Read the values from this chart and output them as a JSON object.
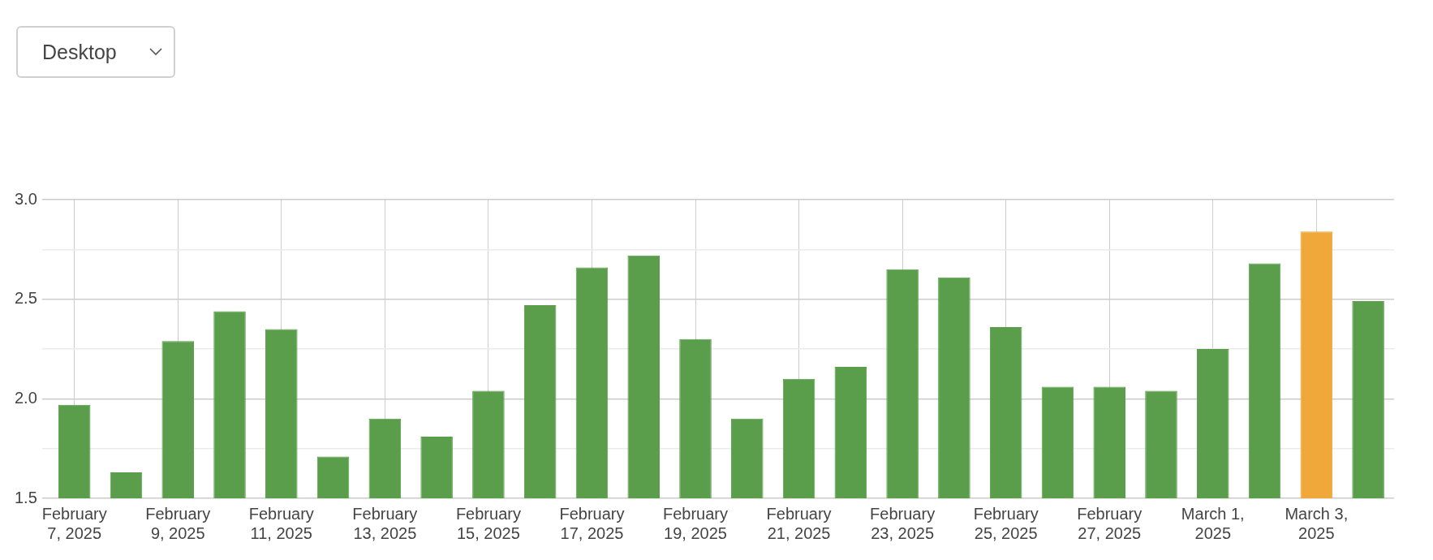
{
  "chart_data": {
    "type": "bar",
    "categories": [
      "February 7, 2025",
      null,
      "February 9, 2025",
      null,
      "February 11, 2025",
      null,
      "February 13, 2025",
      null,
      "February 15, 2025",
      null,
      "February 17, 2025",
      null,
      "February 19, 2025",
      null,
      "February 21, 2025",
      null,
      "February 23, 2025",
      null,
      "February 25, 2025",
      null,
      "February 27, 2025",
      null,
      "March 1, 2025",
      null,
      "March 3, 2025",
      null
    ],
    "values": [
      1.97,
      1.63,
      2.29,
      2.44,
      2.35,
      1.71,
      1.9,
      1.81,
      2.04,
      2.47,
      2.66,
      2.72,
      2.3,
      1.9,
      2.1,
      2.16,
      2.65,
      2.61,
      2.36,
      2.06,
      2.06,
      2.04,
      2.25,
      2.68,
      2.84,
      2.49
    ],
    "colors": [
      "#5a9e4b",
      "#5a9e4b",
      "#5a9e4b",
      "#5a9e4b",
      "#5a9e4b",
      "#5a9e4b",
      "#5a9e4b",
      "#5a9e4b",
      "#5a9e4b",
      "#5a9e4b",
      "#5a9e4b",
      "#5a9e4b",
      "#5a9e4b",
      "#5a9e4b",
      "#5a9e4b",
      "#5a9e4b",
      "#5a9e4b",
      "#5a9e4b",
      "#5a9e4b",
      "#5a9e4b",
      "#5a9e4b",
      "#5a9e4b",
      "#5a9e4b",
      "#5a9e4b",
      "#f0a83a",
      "#5a9e4b"
    ],
    "ylim": [
      1.5,
      3.0
    ],
    "yticks": [
      1.5,
      {
        "value": 1.75,
        "label": null
      },
      {
        "value": 2,
        "label": "2.0"
      },
      {
        "value": 2.25,
        "label": null
      },
      2.5,
      {
        "value": 2.75,
        "label": null
      },
      {
        "value": 3,
        "label": "3.0"
      }
    ],
    "grid": true,
    "legend": false,
    "annotations": [
      "Desktop"
    ]
  }
}
